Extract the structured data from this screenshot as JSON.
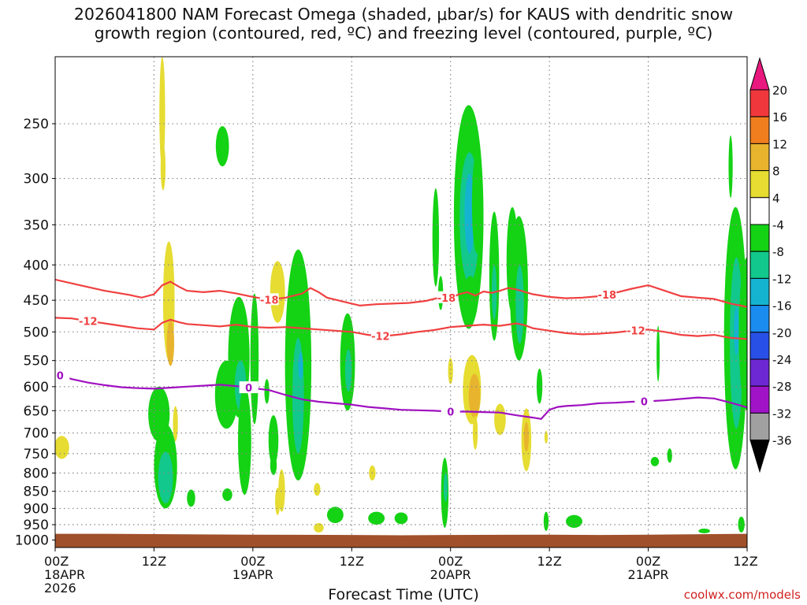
{
  "title_line1": "2026041800 NAM Forecast Omega (shaded, μbar/s) for KAUS with dendritic snow",
  "title_line2": "growth region (contoured, red, ºC) and freezing level (contoured, purple, ºC)",
  "watermark": "coolwx.com/models",
  "chart_data": {
    "type": "heatmap",
    "title": "2026041800 NAM Forecast Omega (shaded, μbar/s) for KAUS with dendritic snow growth region (contoured, red, ºC) and freezing level (contoured, purple, ºC)",
    "xlabel": "Forecast Time (UTC)",
    "ylabel": "",
    "x_ticks": [
      {
        "hour": 0,
        "lines": [
          "00Z",
          "18APR",
          "2026"
        ]
      },
      {
        "hour": 12,
        "lines": [
          "12Z"
        ]
      },
      {
        "hour": 24,
        "lines": [
          "00Z",
          "19APR"
        ]
      },
      {
        "hour": 36,
        "lines": [
          "12Z"
        ]
      },
      {
        "hour": 48,
        "lines": [
          "00Z",
          "20APR"
        ]
      },
      {
        "hour": 60,
        "lines": [
          "12Z"
        ]
      },
      {
        "hour": 72,
        "lines": [
          "00Z",
          "21APR"
        ]
      },
      {
        "hour": 84,
        "lines": [
          "12Z"
        ]
      }
    ],
    "xlim_hours": [
      0,
      84
    ],
    "y_ticks": [
      250,
      300,
      350,
      400,
      450,
      500,
      550,
      600,
      650,
      700,
      750,
      800,
      850,
      900,
      950,
      1000
    ],
    "ylim_hpa": [
      200,
      1025
    ],
    "y_scale": "log",
    "grid": true,
    "colorbar": {
      "units": "μbar/s",
      "labels": [
        20,
        16,
        12,
        8,
        4,
        -4,
        -8,
        -12,
        -16,
        -20,
        -24,
        -28,
        -32,
        -36
      ],
      "bins": [
        {
          "from": 20,
          "to": null,
          "color": "#e8187e"
        },
        {
          "from": 16,
          "to": 20,
          "color": "#f0383c"
        },
        {
          "from": 12,
          "to": 16,
          "color": "#f07e1e"
        },
        {
          "from": 8,
          "to": 12,
          "color": "#e8b42e"
        },
        {
          "from": 4,
          "to": 8,
          "color": "#e6dc32"
        },
        {
          "from": -4,
          "to": 4,
          "color": "#ffffff"
        },
        {
          "from": -8,
          "to": -4,
          "color": "#14d214"
        },
        {
          "from": -12,
          "to": -8,
          "color": "#12c88c"
        },
        {
          "from": -16,
          "to": -12,
          "color": "#14b4d0"
        },
        {
          "from": -20,
          "to": -16,
          "color": "#1a8cf0"
        },
        {
          "from": -24,
          "to": -20,
          "color": "#2850e6"
        },
        {
          "from": -28,
          "to": -24,
          "color": "#6e28d2"
        },
        {
          "from": -32,
          "to": -28,
          "color": "#a014c8"
        },
        {
          "from": -36,
          "to": -32,
          "color": "#a0a0a0"
        },
        {
          "from": null,
          "to": -36,
          "color": "#000000"
        }
      ]
    },
    "omega_features": [
      {
        "hour": 0.8,
        "hpa": 735,
        "dh": 0.9,
        "dp": 28,
        "value": 6
      },
      {
        "hour": 13.0,
        "hpa": 230,
        "dh": 0.35,
        "dp": 60,
        "value": 6
      },
      {
        "hour": 13.1,
        "hpa": 290,
        "dh": 0.3,
        "dp": 22,
        "value": 6
      },
      {
        "hour": 13.8,
        "hpa": 460,
        "dh": 0.7,
        "dp": 90,
        "value": 6
      },
      {
        "hour": 14.0,
        "hpa": 520,
        "dh": 0.45,
        "dp": 40,
        "value": 10
      },
      {
        "hour": 14.6,
        "hpa": 680,
        "dh": 0.3,
        "dp": 40,
        "value": 5
      },
      {
        "hour": 12.6,
        "hpa": 660,
        "dh": 1.3,
        "dp": 60,
        "value": -6
      },
      {
        "hour": 13.4,
        "hpa": 790,
        "dh": 1.4,
        "dp": 110,
        "value": -6
      },
      {
        "hour": 13.4,
        "hpa": 815,
        "dh": 0.9,
        "dp": 70,
        "value": -10
      },
      {
        "hour": 16.5,
        "hpa": 870,
        "dh": 0.5,
        "dp": 25,
        "value": -6
      },
      {
        "hour": 20.3,
        "hpa": 270,
        "dh": 0.8,
        "dp": 18,
        "value": -6
      },
      {
        "hour": 20.8,
        "hpa": 620,
        "dh": 1.4,
        "dp": 70,
        "value": -6
      },
      {
        "hour": 20.9,
        "hpa": 860,
        "dh": 0.6,
        "dp": 18,
        "value": -6
      },
      {
        "hour": 22.3,
        "hpa": 555,
        "dh": 1.3,
        "dp": 110,
        "value": -6
      },
      {
        "hour": 22.5,
        "hpa": 600,
        "dh": 0.7,
        "dp": 50,
        "value": -10
      },
      {
        "hour": 23.0,
        "hpa": 730,
        "dh": 0.8,
        "dp": 130,
        "value": -6
      },
      {
        "hour": 24.2,
        "hpa": 560,
        "dh": 0.5,
        "dp": 120,
        "value": -6
      },
      {
        "hour": 25.7,
        "hpa": 610,
        "dh": 0.3,
        "dp": 25,
        "value": -6
      },
      {
        "hour": 26.5,
        "hpa": 720,
        "dh": 0.6,
        "dp": 60,
        "value": -6
      },
      {
        "hour": 26.5,
        "hpa": 780,
        "dh": 0.4,
        "dp": 25,
        "value": -6
      },
      {
        "hour": 27.0,
        "hpa": 440,
        "dh": 0.9,
        "dp": 45,
        "value": 6
      },
      {
        "hour": 27.5,
        "hpa": 850,
        "dh": 0.4,
        "dp": 60,
        "value": 6
      },
      {
        "hour": 29.5,
        "hpa": 600,
        "dh": 1.6,
        "dp": 220,
        "value": -6
      },
      {
        "hour": 29.5,
        "hpa": 630,
        "dh": 0.7,
        "dp": 120,
        "value": -10
      },
      {
        "hour": 29.8,
        "hpa": 560,
        "dh": 0.3,
        "dp": 25,
        "value": -14
      },
      {
        "hour": 27.0,
        "hpa": 880,
        "dh": 0.3,
        "dp": 40,
        "value": 6
      },
      {
        "hour": 31.8,
        "hpa": 845,
        "dh": 0.4,
        "dp": 18,
        "value": 6
      },
      {
        "hour": 34.0,
        "hpa": 920,
        "dh": 1.0,
        "dp": 25,
        "value": -6
      },
      {
        "hour": 35.5,
        "hpa": 560,
        "dh": 0.9,
        "dp": 90,
        "value": -6
      },
      {
        "hour": 35.6,
        "hpa": 570,
        "dh": 0.4,
        "dp": 40,
        "value": -10
      },
      {
        "hour": 32.0,
        "hpa": 960,
        "dh": 0.6,
        "dp": 15,
        "value": 6
      },
      {
        "hour": 38.5,
        "hpa": 800,
        "dh": 0.4,
        "dp": 20,
        "value": 6
      },
      {
        "hour": 39.0,
        "hpa": 930,
        "dh": 1.0,
        "dp": 20,
        "value": -6
      },
      {
        "hour": 46.2,
        "hpa": 370,
        "dh": 0.4,
        "dp": 60,
        "value": -6
      },
      {
        "hour": 46.8,
        "hpa": 440,
        "dh": 0.3,
        "dp": 25,
        "value": -6
      },
      {
        "hour": 50.2,
        "hpa": 365,
        "dh": 1.8,
        "dp": 130,
        "value": -6
      },
      {
        "hour": 50.3,
        "hpa": 350,
        "dh": 1.2,
        "dp": 75,
        "value": -10
      },
      {
        "hour": 50.3,
        "hpa": 340,
        "dh": 0.6,
        "dp": 45,
        "value": -14
      },
      {
        "hour": 51.2,
        "hpa": 330,
        "dh": 0.6,
        "dp": 55,
        "value": -6
      },
      {
        "hour": 50.4,
        "hpa": 450,
        "dh": 0.9,
        "dp": 35,
        "value": -6
      },
      {
        "hour": 48.0,
        "hpa": 570,
        "dh": 0.3,
        "dp": 25,
        "value": 6
      },
      {
        "hour": 50.6,
        "hpa": 610,
        "dh": 1.1,
        "dp": 70,
        "value": 6
      },
      {
        "hour": 50.9,
        "hpa": 620,
        "dh": 0.7,
        "dp": 45,
        "value": 10
      },
      {
        "hour": 51.0,
        "hpa": 700,
        "dh": 0.3,
        "dp": 40,
        "value": 6
      },
      {
        "hour": 53.3,
        "hpa": 425,
        "dh": 0.6,
        "dp": 90,
        "value": -6
      },
      {
        "hour": 53.3,
        "hpa": 440,
        "dh": 0.3,
        "dp": 40,
        "value": -10
      },
      {
        "hour": 55.5,
        "hpa": 400,
        "dh": 0.7,
        "dp": 70,
        "value": -6
      },
      {
        "hour": 56.3,
        "hpa": 445,
        "dh": 1.1,
        "dp": 105,
        "value": -6
      },
      {
        "hour": 56.4,
        "hpa": 460,
        "dh": 0.5,
        "dp": 60,
        "value": -10
      },
      {
        "hour": 54.0,
        "hpa": 670,
        "dh": 0.7,
        "dp": 35,
        "value": 6
      },
      {
        "hour": 57.2,
        "hpa": 720,
        "dh": 0.6,
        "dp": 75,
        "value": 6
      },
      {
        "hour": 57.2,
        "hpa": 710,
        "dh": 0.3,
        "dp": 35,
        "value": 10
      },
      {
        "hour": 58.8,
        "hpa": 600,
        "dh": 0.35,
        "dp": 35,
        "value": -6
      },
      {
        "hour": 59.6,
        "hpa": 710,
        "dh": 0.2,
        "dp": 15,
        "value": 6
      },
      {
        "hour": 47.3,
        "hpa": 860,
        "dh": 0.45,
        "dp": 100,
        "value": -6
      },
      {
        "hour": 47.4,
        "hpa": 840,
        "dh": 0.25,
        "dp": 40,
        "value": -10
      },
      {
        "hour": 59.6,
        "hpa": 940,
        "dh": 0.3,
        "dp": 30,
        "value": -6
      },
      {
        "hour": 63.0,
        "hpa": 940,
        "dh": 1.0,
        "dp": 20,
        "value": -6
      },
      {
        "hour": 42.0,
        "hpa": 930,
        "dh": 0.8,
        "dp": 18,
        "value": -6
      },
      {
        "hour": 73.2,
        "hpa": 540,
        "dh": 0.12,
        "dp": 50,
        "value": -6
      },
      {
        "hour": 72.8,
        "hpa": 770,
        "dh": 0.5,
        "dp": 12,
        "value": -6
      },
      {
        "hour": 74.6,
        "hpa": 755,
        "dh": 0.3,
        "dp": 18,
        "value": -6
      },
      {
        "hour": 78.8,
        "hpa": 970,
        "dh": 0.7,
        "dp": 7,
        "value": -6
      },
      {
        "hour": 82.0,
        "hpa": 290,
        "dh": 0.25,
        "dp": 30,
        "value": -6
      },
      {
        "hour": 83.3,
        "hpa": 950,
        "dh": 0.4,
        "dp": 25,
        "value": -6
      },
      {
        "hour": 82.6,
        "hpa": 560,
        "dh": 1.4,
        "dp": 230,
        "value": -6
      },
      {
        "hour": 82.7,
        "hpa": 540,
        "dh": 0.8,
        "dp": 150,
        "value": -10
      },
      {
        "hour": 82.7,
        "hpa": 500,
        "dh": 0.3,
        "dp": 40,
        "value": -14
      },
      {
        "hour": 84.0,
        "hpa": 520,
        "dh": 1.0,
        "dp": 130,
        "value": -6
      }
    ],
    "series": [
      {
        "label": "-18",
        "color": "#f04040",
        "label_hours": [
          26,
          47.5,
          67
        ],
        "x": [
          0,
          3,
          6,
          9,
          10.5,
          12,
          13,
          14,
          15,
          16,
          18,
          20,
          22,
          24,
          26,
          28,
          30,
          31,
          32,
          33,
          35,
          37,
          39,
          41,
          43,
          45,
          47,
          48,
          49,
          50,
          51,
          52,
          53,
          54,
          55,
          56,
          58,
          60,
          62,
          64,
          66,
          68,
          70,
          72,
          74,
          76,
          78,
          80,
          82,
          84
        ],
        "values": [
          420,
          428,
          436,
          442,
          446,
          441,
          428,
          423,
          430,
          436,
          438,
          436,
          440,
          445,
          449,
          446,
          440,
          432,
          438,
          446,
          452,
          458,
          456,
          455,
          454,
          451,
          445,
          447,
          441,
          438,
          443,
          437,
          439,
          436,
          432,
          434,
          441,
          445,
          447,
          446,
          444,
          439,
          433,
          428,
          436,
          444,
          446,
          448,
          455,
          460
        ]
      },
      {
        "label": "-12",
        "color": "#f04040",
        "label_hours": [
          4,
          39.5,
          70.5
        ],
        "x": [
          0,
          2,
          4,
          6,
          8,
          10,
          12,
          13,
          14,
          15,
          16,
          18,
          20,
          22,
          24,
          26,
          28,
          30,
          32,
          34,
          36,
          38,
          40,
          42,
          44,
          46,
          48,
          50,
          52,
          54,
          56,
          57,
          58,
          60,
          62,
          64,
          66,
          68,
          70,
          72,
          74,
          76,
          78,
          80,
          82,
          84
        ],
        "values": [
          477,
          478,
          482,
          486,
          490,
          494,
          496,
          485,
          480,
          484,
          487,
          489,
          491,
          488,
          492,
          493,
          492,
          494,
          496,
          498,
          500,
          505,
          507,
          504,
          500,
          497,
          492,
          490,
          488,
          490,
          486,
          489,
          494,
          498,
          502,
          504,
          503,
          501,
          498,
          496,
          500,
          505,
          507,
          505,
          510,
          512
        ]
      },
      {
        "label": "0",
        "color": "#a010c0",
        "label_hours": [
          0.6,
          23.5,
          48,
          71.5
        ],
        "x": [
          0,
          2,
          4,
          6,
          8,
          10,
          12,
          14,
          16,
          18,
          20,
          22,
          24,
          26,
          28,
          30,
          32,
          34,
          36,
          38,
          40,
          42,
          44,
          46,
          48,
          50,
          52,
          54,
          56,
          58,
          59,
          60,
          61,
          62,
          64,
          66,
          68,
          70,
          72,
          74,
          76,
          78,
          80,
          82,
          84
        ],
        "values": [
          575,
          585,
          592,
          597,
          601,
          603,
          604,
          602,
          600,
          598,
          596,
          599,
          603,
          607,
          617,
          626,
          631,
          634,
          637,
          642,
          645,
          648,
          649,
          650,
          652,
          652,
          653,
          654,
          660,
          665,
          668,
          648,
          642,
          640,
          638,
          634,
          633,
          631,
          630,
          628,
          625,
          622,
          624,
          633,
          643
        ]
      }
    ]
  }
}
